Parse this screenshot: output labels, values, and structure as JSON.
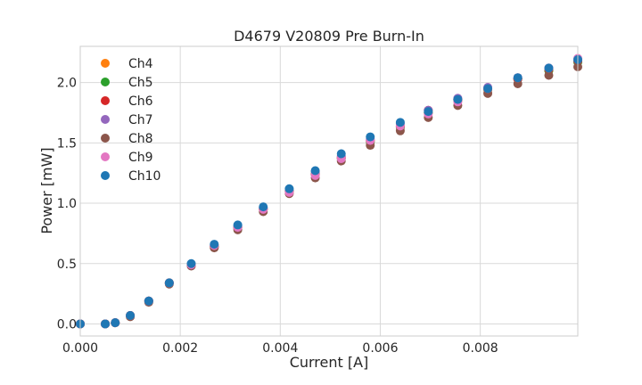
{
  "chart_data": {
    "type": "scatter",
    "title": "D4679 V20809 Pre Burn-In",
    "xlabel": "Current [A]",
    "ylabel": "Power [mW]",
    "xlim": [
      0.0,
      0.00995
    ],
    "ylim": [
      -0.1,
      2.3
    ],
    "x_ticks": [
      0.0,
      0.002,
      0.004,
      0.006,
      0.008
    ],
    "x_tick_labels": [
      "0.000",
      "0.002",
      "0.004",
      "0.006",
      "0.008"
    ],
    "y_ticks": [
      0.0,
      0.5,
      1.0,
      1.5,
      2.0
    ],
    "y_tick_labels": [
      "0.0",
      "0.5",
      "1.0",
      "1.5",
      "2.0"
    ],
    "grid": true,
    "legend_position": "top-left",
    "x": [
      0.0,
      0.0005,
      0.0007,
      0.001,
      0.00137,
      0.00178,
      0.00222,
      0.00268,
      0.00315,
      0.00366,
      0.00418,
      0.0047,
      0.00522,
      0.0058,
      0.0064,
      0.00696,
      0.00755,
      0.00815,
      0.00875,
      0.00937,
      0.00995
    ],
    "series": [
      {
        "name": "Ch4",
        "color": "#ff7f0e",
        "values": [
          0.0,
          0.0,
          0.01,
          0.07,
          0.19,
          0.34,
          0.49,
          0.64,
          0.8,
          0.95,
          1.1,
          1.24,
          1.37,
          1.51,
          1.63,
          1.75,
          1.85,
          1.94,
          2.03,
          2.1,
          2.18
        ]
      },
      {
        "name": "Ch5",
        "color": "#2ca02c",
        "values": [
          0.0,
          0.0,
          0.01,
          0.07,
          0.19,
          0.34,
          0.49,
          0.64,
          0.8,
          0.95,
          1.1,
          1.24,
          1.37,
          1.51,
          1.63,
          1.75,
          1.86,
          1.95,
          2.03,
          2.1,
          2.17
        ]
      },
      {
        "name": "Ch6",
        "color": "#d62728",
        "values": [
          0.0,
          0.0,
          0.01,
          0.07,
          0.19,
          0.34,
          0.49,
          0.64,
          0.8,
          0.95,
          1.1,
          1.24,
          1.38,
          1.52,
          1.64,
          1.77,
          1.86,
          1.95,
          2.03,
          2.11,
          2.18
        ]
      },
      {
        "name": "Ch7",
        "color": "#9467bd",
        "values": [
          0.0,
          0.0,
          0.01,
          0.07,
          0.19,
          0.34,
          0.49,
          0.65,
          0.81,
          0.96,
          1.11,
          1.26,
          1.39,
          1.53,
          1.66,
          1.77,
          1.87,
          1.96,
          2.04,
          2.12,
          2.19
        ]
      },
      {
        "name": "Ch8",
        "color": "#8c564b",
        "values": [
          0.0,
          0.0,
          0.01,
          0.06,
          0.18,
          0.33,
          0.48,
          0.63,
          0.78,
          0.93,
          1.08,
          1.21,
          1.35,
          1.48,
          1.6,
          1.71,
          1.81,
          1.91,
          1.99,
          2.06,
          2.13
        ]
      },
      {
        "name": "Ch9",
        "color": "#e377c2",
        "values": [
          0.0,
          0.0,
          0.01,
          0.07,
          0.19,
          0.34,
          0.49,
          0.65,
          0.8,
          0.95,
          1.09,
          1.23,
          1.37,
          1.52,
          1.64,
          1.74,
          1.84,
          1.95,
          2.04,
          2.12,
          2.2
        ]
      },
      {
        "name": "Ch10",
        "color": "#1f77b4",
        "values": [
          0.0,
          0.0,
          0.01,
          0.07,
          0.19,
          0.34,
          0.5,
          0.66,
          0.82,
          0.97,
          1.12,
          1.27,
          1.41,
          1.55,
          1.67,
          1.76,
          1.86,
          1.95,
          2.04,
          2.12,
          2.19
        ]
      }
    ]
  }
}
